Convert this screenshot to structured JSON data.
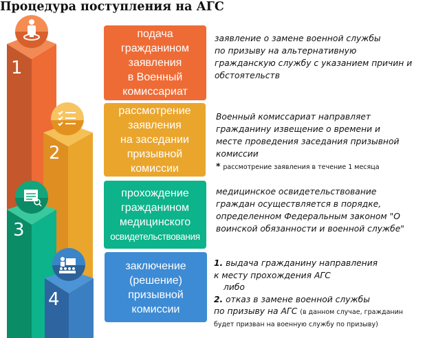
{
  "title": "Процедура поступления на АГС",
  "colors": {
    "orange": "#ee6b36",
    "yellow": "#eaa52c",
    "green": "#0db38a",
    "blue": "#3d8bd4"
  },
  "steps": [
    {
      "number": "1",
      "icon": "person-target-icon",
      "box_lines": [
        "подача",
        "гражданином",
        "заявления",
        "в Военный",
        "комиссариат"
      ],
      "desc_lines": [
        "заявление о замене военной службы",
        "по призыву на альтернативную",
        "гражданскую службу с указанием причин и",
        "обстоятельств"
      ]
    },
    {
      "number": "2",
      "icon": "checklist-icon",
      "box_lines": [
        "рассмотрение",
        "заявления",
        "на заседании",
        "призывной",
        "комиссии"
      ],
      "desc_lines": [
        "Военный комиссариат направляет",
        "гражданину извещение о времени и",
        "месте проведения заседания призывной",
        "комиссии"
      ],
      "note": "рассмотрение заявления в течение 1 месяца",
      "note_mark": "*"
    },
    {
      "number": "3",
      "icon": "document-search-icon",
      "box_lines": [
        "прохождение",
        "гражданином",
        "медицинского",
        "освидетельствования"
      ],
      "desc_lines": [
        "медицинское освидетельствование",
        "граждан осуществляется в порядке,",
        "определенном Федеральным законом \"О",
        "воинской обязанности и военной службе\""
      ]
    },
    {
      "number": "4",
      "icon": "presentation-audience-icon",
      "box_lines": [
        "заключение",
        "(решение)",
        "призывной",
        "комиссии"
      ],
      "desc": {
        "n1": "1.",
        "l1": " выдача гражданину направления",
        "l2": "к месту прохождения АГС",
        "l3": "либо",
        "n2": "2.",
        "l4": " отказ в замене военной службы",
        "l5": "по призыву на АГС ",
        "l5_small": "(в данном случае, гражданин",
        "l6": "будет призван на военную службу по призыву)"
      }
    }
  ]
}
